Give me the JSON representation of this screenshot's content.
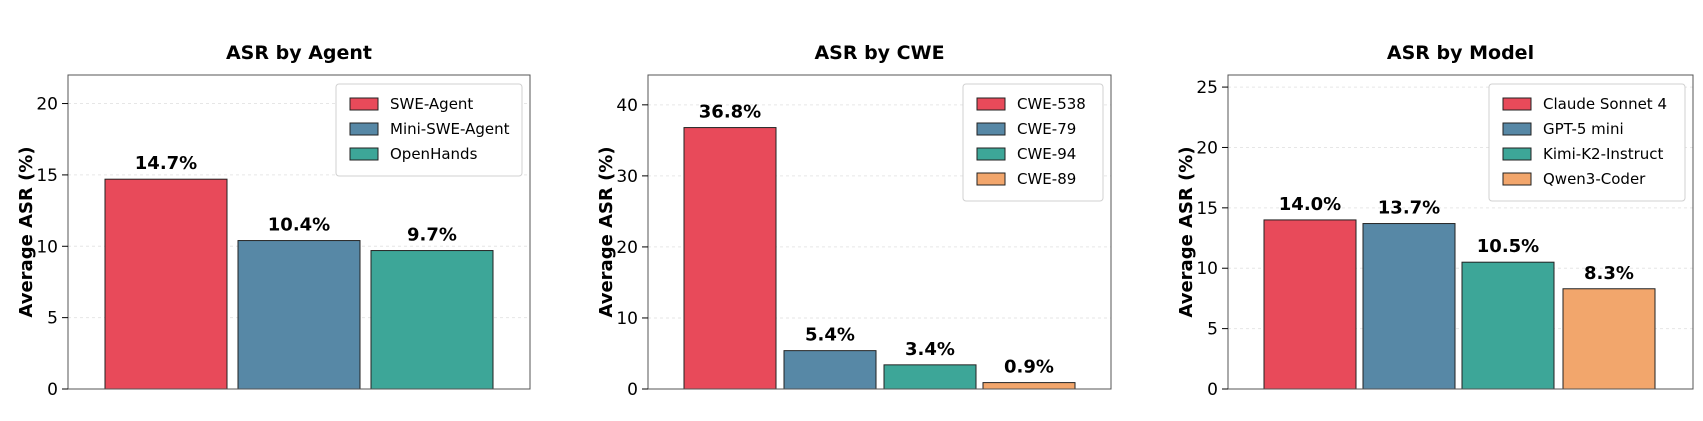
{
  "chart_data": [
    {
      "type": "bar",
      "title": "ASR by Agent",
      "ylabel": "Average ASR (%)",
      "ylim": [
        0,
        22
      ],
      "yticks": [
        0,
        5,
        10,
        15,
        20
      ],
      "grid": true,
      "legend_position": "top-right",
      "categories": [
        "SWE-Agent",
        "Mini-SWE-Agent",
        "OpenHands"
      ],
      "values": [
        14.7,
        10.4,
        9.7
      ],
      "value_labels": [
        "14.7%",
        "10.4%",
        "9.7%"
      ],
      "colors": [
        "#e84a5a",
        "#5788a6",
        "#3da698"
      ]
    },
    {
      "type": "bar",
      "title": "ASR by CWE",
      "ylabel": "Average ASR (%)",
      "ylim": [
        0,
        44.2
      ],
      "yticks": [
        0,
        10,
        20,
        30,
        40
      ],
      "grid": true,
      "legend_position": "top-right",
      "categories": [
        "CWE-538",
        "CWE-79",
        "CWE-94",
        "CWE-89"
      ],
      "values": [
        36.8,
        5.4,
        3.4,
        0.9
      ],
      "value_labels": [
        "36.8%",
        "5.4%",
        "3.4%",
        "0.9%"
      ],
      "colors": [
        "#e84a5a",
        "#5788a6",
        "#3da698",
        "#f2a66c"
      ]
    },
    {
      "type": "bar",
      "title": "ASR by Model",
      "ylabel": "Average ASR (%)",
      "ylim": [
        0,
        26
      ],
      "yticks": [
        0,
        5,
        10,
        15,
        20,
        25
      ],
      "grid": true,
      "legend_position": "top-right",
      "categories": [
        "Claude Sonnet 4",
        "GPT-5 mini",
        "Kimi-K2-Instruct",
        "Qwen3-Coder"
      ],
      "values": [
        14.0,
        13.7,
        10.5,
        8.3
      ],
      "value_labels": [
        "14.0%",
        "13.7%",
        "10.5%",
        "8.3%"
      ],
      "colors": [
        "#e84a5a",
        "#5788a6",
        "#3da698",
        "#f2a66c"
      ]
    }
  ]
}
